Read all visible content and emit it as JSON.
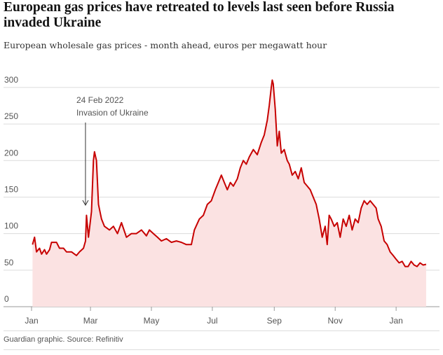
{
  "chart_data": {
    "type": "area",
    "title": "European gas prices have retreated to levels last seen before Russia invaded Ukraine",
    "subtitle": "European wholesale gas prices - month ahead, euros per megawatt hour",
    "source": "Guardian graphic. Source: Refinitiv",
    "color": "#c70000",
    "fill": "#fbe2e2",
    "grid": true,
    "annotations": [
      {
        "x": 54,
        "text": [
          "24 Feb 2022",
          "Invasion of Ukraine"
        ]
      }
    ],
    "x": [
      1,
      3,
      5,
      8,
      10,
      13,
      15,
      18,
      20,
      25,
      28,
      32,
      35,
      40,
      45,
      48,
      52,
      54,
      55,
      57,
      60,
      62,
      63,
      65,
      67,
      70,
      73,
      78,
      82,
      86,
      90,
      95,
      100,
      105,
      110,
      115,
      118,
      122,
      126,
      130,
      135,
      140,
      145,
      150,
      155,
      160,
      163,
      168,
      172,
      176,
      180,
      184,
      187,
      190,
      193,
      196,
      199,
      202,
      206,
      209,
      212,
      215,
      218,
      222,
      226,
      230,
      233,
      236,
      238,
      240,
      241,
      242,
      244,
      246,
      248,
      250,
      253,
      256,
      258,
      261,
      264,
      267,
      270,
      273,
      276,
      279,
      282,
      285,
      288,
      291,
      294,
      296,
      298,
      300,
      303,
      306,
      309,
      312,
      315,
      318,
      321,
      324,
      327,
      330,
      333,
      336,
      339,
      342,
      345,
      347,
      350,
      353,
      356,
      359,
      362,
      365,
      368,
      371,
      374,
      377,
      380,
      383,
      386,
      389,
      392,
      395
    ],
    "values": [
      85,
      95,
      75,
      80,
      72,
      78,
      72,
      78,
      88,
      88,
      80,
      80,
      75,
      75,
      70,
      75,
      80,
      90,
      125,
      95,
      130,
      200,
      212,
      200,
      140,
      120,
      110,
      105,
      110,
      100,
      115,
      95,
      100,
      100,
      105,
      97,
      105,
      100,
      95,
      90,
      93,
      88,
      90,
      88,
      85,
      85,
      105,
      120,
      125,
      140,
      145,
      160,
      170,
      180,
      170,
      160,
      170,
      165,
      175,
      190,
      200,
      195,
      205,
      215,
      208,
      225,
      235,
      255,
      275,
      300,
      310,
      305,
      270,
      220,
      240,
      210,
      215,
      200,
      195,
      180,
      185,
      175,
      190,
      170,
      165,
      160,
      150,
      140,
      120,
      95,
      110,
      85,
      125,
      120,
      110,
      115,
      95,
      120,
      110,
      125,
      105,
      120,
      115,
      135,
      145,
      140,
      145,
      140,
      135,
      120,
      110,
      90,
      85,
      75,
      70,
      65,
      60,
      62,
      55,
      55,
      62,
      57,
      55,
      60,
      57,
      58
    ],
    "xlim": [
      0,
      400
    ],
    "xticks": [
      {
        "value": 0,
        "label": "Jan"
      },
      {
        "value": 59,
        "label": "Mar"
      },
      {
        "value": 120,
        "label": "May"
      },
      {
        "value": 181,
        "label": "Jul"
      },
      {
        "value": 243,
        "label": "Sep"
      },
      {
        "value": 304,
        "label": "Nov"
      },
      {
        "value": 365,
        "label": "Jan"
      }
    ],
    "ylim": [
      0,
      320
    ],
    "yticks": [
      0,
      50,
      100,
      150,
      200,
      250,
      300
    ]
  }
}
